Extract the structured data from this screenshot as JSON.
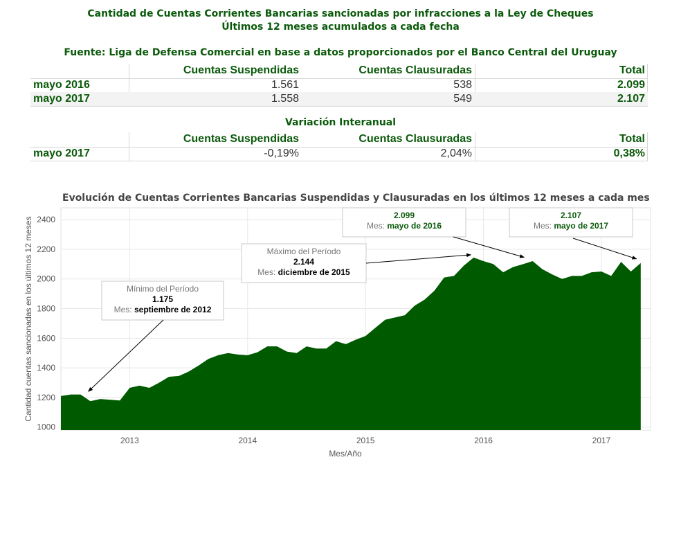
{
  "header": {
    "title_line1": "Cantidad de Cuentas Corrientes Bancarias sancionadas por infracciones a la Ley de Cheques",
    "title_line2": "Últimos 12 meses acumulados a cada fecha",
    "source": "Fuente: Liga de Defensa Comercial en base a datos proporcionados por el Banco Central del Uruguay"
  },
  "table1": {
    "columns": [
      "Cuentas Suspendidas",
      "Cuentas Clausuradas",
      "Total"
    ],
    "rows": [
      {
        "label": "mayo 2016",
        "suspendidas": "1.561",
        "clausuradas": "538",
        "total": "2.099"
      },
      {
        "label": "mayo 2017",
        "suspendidas": "1.558",
        "clausuradas": "549",
        "total": "2.107"
      }
    ]
  },
  "table2": {
    "title": "Variación Interanual",
    "columns": [
      "Cuentas Suspendidas",
      "Cuentas Clausuradas",
      "Total"
    ],
    "rows": [
      {
        "label": "mayo 2017",
        "suspendidas": "-0,19%",
        "clausuradas": "2,04%",
        "total": "0,38%"
      }
    ]
  },
  "colors": {
    "accent": "#0b5a0b",
    "area": "#005a00"
  },
  "chart_data": {
    "type": "area",
    "title": "Evolución de Cuentas Corrientes Bancarias Suspendidas y Clausuradas en los últimos 12 meses a cada mes",
    "xlabel": "Mes/Año",
    "ylabel": "Cantidad cuentas sancionadas en los últimos 12 meses",
    "ylim": [
      980,
      2480
    ],
    "yticks": [
      1000,
      1200,
      1400,
      1600,
      1800,
      2000,
      2200,
      2400
    ],
    "xticks": [
      "2013",
      "2014",
      "2015",
      "2016",
      "2017"
    ],
    "xtick_months": [
      7,
      19,
      31,
      43,
      55
    ],
    "grid": true,
    "x": [
      "2012-06",
      "2012-07",
      "2012-08",
      "2012-09",
      "2012-10",
      "2012-11",
      "2012-12",
      "2013-01",
      "2013-02",
      "2013-03",
      "2013-04",
      "2013-05",
      "2013-06",
      "2013-07",
      "2013-08",
      "2013-09",
      "2013-10",
      "2013-11",
      "2013-12",
      "2014-01",
      "2014-02",
      "2014-03",
      "2014-04",
      "2014-05",
      "2014-06",
      "2014-07",
      "2014-08",
      "2014-09",
      "2014-10",
      "2014-11",
      "2014-12",
      "2015-01",
      "2015-02",
      "2015-03",
      "2015-04",
      "2015-05",
      "2015-06",
      "2015-07",
      "2015-08",
      "2015-09",
      "2015-10",
      "2015-11",
      "2015-12",
      "2016-01",
      "2016-02",
      "2016-03",
      "2016-04",
      "2016-05",
      "2016-06",
      "2016-07",
      "2016-08",
      "2016-09",
      "2016-10",
      "2016-11",
      "2016-12",
      "2017-01",
      "2017-02",
      "2017-03",
      "2017-04",
      "2017-05"
    ],
    "series": [
      {
        "values": [
          1210,
          1220,
          1220,
          1175,
          1190,
          1185,
          1180,
          1265,
          1280,
          1265,
          1300,
          1340,
          1345,
          1375,
          1415,
          1460,
          1485,
          1500,
          1490,
          1485,
          1505,
          1545,
          1545,
          1510,
          1500,
          1545,
          1530,
          1530,
          1580,
          1560,
          1590,
          1615,
          1670,
          1725,
          1740,
          1755,
          1820,
          1860,
          1920,
          2010,
          2020,
          2090,
          2144,
          2120,
          2100,
          2045,
          2080,
          2099,
          2120,
          2065,
          2030,
          2000,
          2020,
          2020,
          2045,
          2050,
          2020,
          2115,
          2050,
          2107
        ]
      }
    ],
    "annotations": [
      {
        "id": "min",
        "title": "Mínimo del Período",
        "value": "1.175",
        "mes_label": "Mes:",
        "mes": "septiembre de 2012",
        "point_index": 3
      },
      {
        "id": "max",
        "title": "Máximo del Período",
        "value": "2.144",
        "mes_label": "Mes:",
        "mes": "diciembre de 2015",
        "point_index": 42
      },
      {
        "id": "may16",
        "value": "2.099",
        "mes_label": "Mes:",
        "mes": "mayo de 2016",
        "point_index": 47
      },
      {
        "id": "may17",
        "value": "2.107",
        "mes_label": "Mes:",
        "mes": "mayo de 2017",
        "point_index": 59
      }
    ]
  }
}
